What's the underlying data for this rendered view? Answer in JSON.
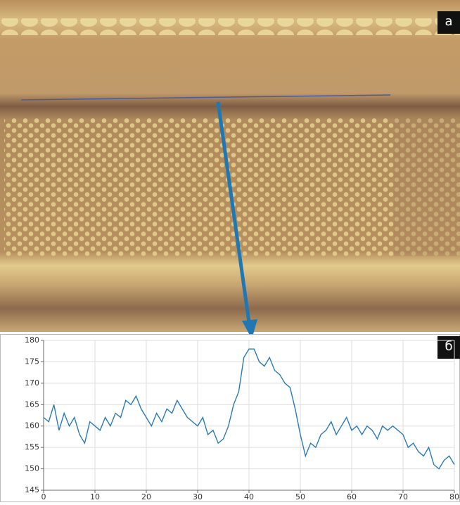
{
  "panel_labels": [
    "а",
    "б"
  ],
  "chart_data": {
    "type": "line",
    "color": "#2a7ab5",
    "grid": true,
    "xlim": [
      0,
      80
    ],
    "xticks": [
      0,
      10,
      20,
      30,
      40,
      50,
      60,
      70,
      80
    ],
    "ylim": [
      145,
      180
    ],
    "yticks": [
      145,
      150,
      155,
      160,
      165,
      170,
      175,
      180
    ],
    "x": [
      0,
      1,
      2,
      3,
      4,
      5,
      6,
      7,
      8,
      9,
      10,
      11,
      12,
      13,
      14,
      15,
      16,
      17,
      18,
      19,
      20,
      21,
      22,
      23,
      24,
      25,
      26,
      27,
      28,
      29,
      30,
      31,
      32,
      33,
      34,
      35,
      36,
      37,
      38,
      39,
      40,
      41,
      42,
      43,
      44,
      45,
      46,
      47,
      48,
      49,
      50,
      51,
      52,
      53,
      54,
      55,
      56,
      57,
      58,
      59,
      60,
      61,
      62,
      63,
      64,
      65,
      66,
      67,
      68,
      69,
      70,
      71,
      72,
      73,
      74,
      75,
      76,
      77,
      78,
      79,
      80
    ],
    "values": [
      162,
      161,
      165,
      159,
      163,
      160,
      162,
      158,
      156,
      161,
      160,
      159,
      162,
      160,
      163,
      162,
      166,
      165,
      167,
      164,
      162,
      160,
      163,
      161,
      164,
      163,
      166,
      164,
      162,
      161,
      160,
      162,
      158,
      159,
      156,
      157,
      160,
      165,
      168,
      176,
      178,
      178,
      175,
      174,
      176,
      173,
      172,
      170,
      169,
      164,
      158,
      153,
      156,
      155,
      158,
      159,
      161,
      158,
      160,
      162,
      159,
      160,
      158,
      160,
      159,
      157,
      160,
      159,
      160,
      159,
      158,
      155,
      156,
      154,
      153,
      155,
      151,
      150,
      152,
      153,
      151
    ]
  }
}
